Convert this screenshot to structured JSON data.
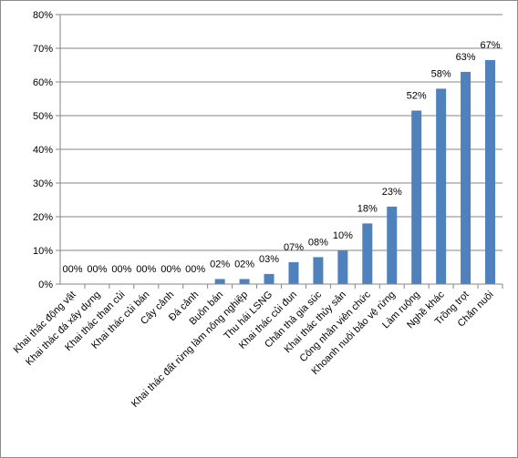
{
  "chart_data": {
    "type": "bar",
    "categories": [
      "Khai thác động vật",
      "Khai thác đá xây dựng",
      "Khai thác than củi",
      "Khai thác củi bán",
      "Cây cảnh",
      "Đá cảnh",
      "Buôn bán",
      "Khai thác đất rừng làm nông nghiệp",
      "Thu hái LSNG",
      "Khai thác củi đun",
      "Chăn thả gia súc",
      "Khai thác thủy sản",
      "Công nhân viên chức",
      "Khoanh nuôi bảo vệ rừng",
      "Làm ruộng",
      "Nghề khác",
      "Trồng trọt",
      "Chăn nuôi"
    ],
    "values": [
      0,
      0,
      0,
      0,
      0,
      0,
      1.5,
      1.5,
      3,
      6.5,
      8,
      10,
      18,
      23,
      51.5,
      58,
      63,
      66.5
    ],
    "data_labels": [
      "00%",
      "00%",
      "00%",
      "00%",
      "00%",
      "00%",
      "02%",
      "02%",
      "03%",
      "07%",
      "08%",
      "10%",
      "18%",
      "23%",
      "52%",
      "58%",
      "63%",
      "67%"
    ],
    "y_ticks": [
      "0%",
      "10%",
      "20%",
      "30%",
      "40%",
      "50%",
      "60%",
      "70%",
      "80%"
    ],
    "ylim": [
      0,
      80
    ],
    "grid": true,
    "legend": "none",
    "bar_color": "#4f81bd"
  }
}
